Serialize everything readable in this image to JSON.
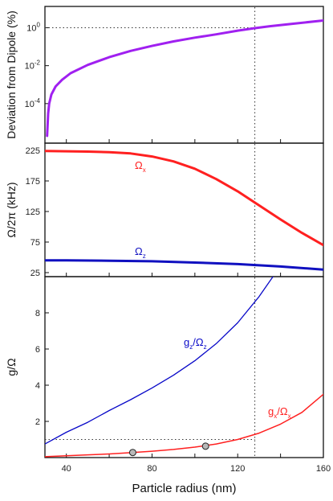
{
  "figure": {
    "xlabel": "Particle radius (nm)",
    "xlim": [
      30,
      160
    ],
    "xticks": [
      40,
      80,
      120,
      160
    ],
    "xticks_minor": [
      60,
      100,
      140
    ],
    "vline_x": 128
  },
  "chart_data": [
    {
      "type": "line",
      "panel": "top",
      "ylabel": "Deviation from Dipole (%)",
      "yscale": "log",
      "ylim": [
        1e-06,
        5
      ],
      "yticks": [
        {
          "value": 1,
          "base": "10",
          "exp": "0"
        },
        {
          "value": 0.01,
          "base": "10",
          "exp": "-2"
        },
        {
          "value": 0.0001,
          "base": "10",
          "exp": "-4"
        }
      ],
      "hline_y": 1,
      "series": [
        {
          "color": "#a020f0",
          "x": [
            31,
            31.5,
            32,
            33,
            35,
            38,
            42,
            50,
            60,
            70,
            80,
            90,
            100,
            110,
            120,
            128,
            135,
            145,
            160
          ],
          "y": [
            2e-06,
            3e-05,
            0.0001,
            0.0003,
            0.0008,
            0.0018,
            0.004,
            0.011,
            0.028,
            0.06,
            0.11,
            0.19,
            0.3,
            0.45,
            0.7,
            0.95,
            1.2,
            1.6,
            2.4
          ]
        }
      ]
    },
    {
      "type": "line",
      "panel": "middle",
      "ylabel": "Ω/2π (kHz)",
      "ylim": [
        25,
        225
      ],
      "yticks": [
        25,
        75,
        125,
        175,
        225
      ],
      "series": [
        {
          "label": "Ω",
          "sub": "x",
          "color": "#ff2020",
          "x": [
            30,
            40,
            50,
            60,
            70,
            80,
            90,
            100,
            110,
            120,
            130,
            140,
            150,
            160
          ],
          "y": [
            224,
            223.5,
            223,
            222,
            220,
            215,
            207,
            195,
            178,
            158,
            135,
            112,
            90,
            70
          ]
        },
        {
          "label": "Ω",
          "sub": "z",
          "color": "#1010c0",
          "x": [
            30,
            40,
            60,
            80,
            100,
            120,
            140,
            160
          ],
          "y": [
            45,
            45,
            44.5,
            43.5,
            41.5,
            39,
            35,
            30
          ]
        }
      ]
    },
    {
      "type": "line",
      "panel": "bottom",
      "ylabel": "g/Ω",
      "ylim": [
        0,
        10
      ],
      "yticks": [
        2,
        4,
        6,
        8
      ],
      "hline_y": 1,
      "series": [
        {
          "label": "g",
          "sub": "z",
          "div": "/Ω",
          "sub2": "z",
          "color": "#0808c8",
          "x": [
            30,
            40,
            50,
            60,
            70,
            80,
            90,
            100,
            110,
            120,
            130,
            140
          ],
          "y": [
            0.75,
            1.4,
            1.95,
            2.6,
            3.2,
            3.85,
            4.55,
            5.35,
            6.3,
            7.45,
            8.9,
            10.6
          ]
        },
        {
          "label": "g",
          "sub": "x",
          "div": "/Ω",
          "sub2": "x",
          "color": "#ff2020",
          "x": [
            30,
            40,
            50,
            60,
            70,
            80,
            90,
            100,
            110,
            120,
            130,
            140,
            150,
            160
          ],
          "y": [
            0.05,
            0.1,
            0.15,
            0.2,
            0.27,
            0.35,
            0.45,
            0.58,
            0.75,
            1.0,
            1.35,
            1.85,
            2.5,
            3.5
          ]
        }
      ],
      "points": [
        {
          "x": 71,
          "y": 0.28
        },
        {
          "x": 105,
          "y": 0.63
        }
      ]
    }
  ]
}
